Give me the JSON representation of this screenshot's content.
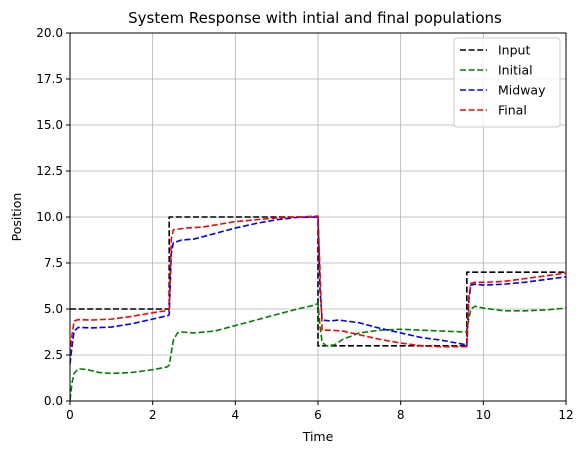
{
  "chart_data": {
    "type": "line",
    "title": "System Response with intial and final populations",
    "xlabel": "Time",
    "ylabel": "Position",
    "xlim": [
      0,
      12
    ],
    "ylim": [
      0,
      20
    ],
    "xticks": [
      0,
      2,
      4,
      6,
      8,
      10,
      12
    ],
    "xtick_labels": [
      "0",
      "2",
      "4",
      "6",
      "8",
      "10",
      "12"
    ],
    "yticks": [
      0,
      2.5,
      5,
      7.5,
      10,
      12.5,
      15,
      17.5,
      20
    ],
    "ytick_labels": [
      "0.0",
      "2.5",
      "5.0",
      "7.5",
      "10.0",
      "12.5",
      "15.0",
      "17.5",
      "20.0"
    ],
    "grid": true,
    "legend_position": "upper-right",
    "series": [
      {
        "name": "Input",
        "color": "#000000",
        "style": "dashed",
        "x": [
          0,
          2.4,
          2.4,
          6.0,
          6.0,
          9.6,
          9.6,
          12
        ],
        "y": [
          5,
          5,
          10,
          10,
          3,
          3,
          7,
          7
        ]
      },
      {
        "name": "Initial",
        "color": "#008000",
        "style": "dashed",
        "x": [
          0,
          0.05,
          0.1,
          0.2,
          0.4,
          0.7,
          1.0,
          1.5,
          2.0,
          2.35,
          2.4,
          2.5,
          2.6,
          2.7,
          3.0,
          3.5,
          4.0,
          4.5,
          5.0,
          5.5,
          5.9,
          6.0,
          6.05,
          6.1,
          6.2,
          6.4,
          6.6,
          7.0,
          7.5,
          8.0,
          8.5,
          9.0,
          9.59,
          9.6,
          9.7,
          9.8,
          10.0,
          10.5,
          11.0,
          11.5,
          12.0
        ],
        "y": [
          0.05,
          1.0,
          1.5,
          1.75,
          1.72,
          1.55,
          1.5,
          1.55,
          1.7,
          1.85,
          1.95,
          3.3,
          3.7,
          3.75,
          3.7,
          3.8,
          4.1,
          4.4,
          4.7,
          5.0,
          5.2,
          5.3,
          4.0,
          3.2,
          3.0,
          3.05,
          3.35,
          3.7,
          3.85,
          3.9,
          3.85,
          3.8,
          3.75,
          3.9,
          5.0,
          5.15,
          5.05,
          4.9,
          4.9,
          4.95,
          5.05
        ]
      },
      {
        "name": "Midway",
        "color": "#0000ff",
        "style": "dashed",
        "x": [
          0,
          0.05,
          0.1,
          0.2,
          0.5,
          1.0,
          1.5,
          2.0,
          2.38,
          2.4,
          2.45,
          2.5,
          2.7,
          3.0,
          3.5,
          4.0,
          4.5,
          5.0,
          5.5,
          6.0,
          6.05,
          6.1,
          6.3,
          6.5,
          7.0,
          7.5,
          8.0,
          8.5,
          9.0,
          9.59,
          9.6,
          9.65,
          9.7,
          9.8,
          10.0,
          10.5,
          11.0,
          11.5,
          12.0
        ],
        "y": [
          2.0,
          3.0,
          3.8,
          4.0,
          3.97,
          4.02,
          4.2,
          4.45,
          4.65,
          4.7,
          8.0,
          8.6,
          8.75,
          8.8,
          9.1,
          9.4,
          9.65,
          9.85,
          9.98,
          10.0,
          6.0,
          4.4,
          4.35,
          4.4,
          4.25,
          3.95,
          3.7,
          3.45,
          3.3,
          3.05,
          3.0,
          5.5,
          6.3,
          6.35,
          6.3,
          6.35,
          6.45,
          6.6,
          6.75
        ]
      },
      {
        "name": "Final",
        "color": "#ff0000",
        "style": "dashed",
        "x": [
          0,
          0.05,
          0.1,
          0.2,
          0.5,
          1.0,
          1.5,
          2.0,
          2.38,
          2.4,
          2.45,
          2.5,
          2.8,
          3.2,
          3.6,
          4.0,
          4.5,
          5.0,
          5.5,
          6.0,
          6.05,
          6.1,
          6.3,
          6.6,
          7.0,
          7.5,
          8.0,
          8.5,
          9.0,
          9.59,
          9.6,
          9.65,
          9.7,
          9.8,
          10.0,
          10.5,
          11.0,
          11.5,
          12.0
        ],
        "y": [
          2.5,
          3.6,
          4.35,
          4.42,
          4.4,
          4.45,
          4.6,
          4.8,
          4.92,
          4.95,
          8.8,
          9.3,
          9.4,
          9.45,
          9.6,
          9.75,
          9.85,
          9.95,
          10.0,
          10.05,
          7.0,
          3.85,
          3.85,
          3.8,
          3.6,
          3.35,
          3.15,
          3.0,
          2.95,
          2.95,
          2.95,
          5.7,
          6.4,
          6.45,
          6.45,
          6.5,
          6.65,
          6.8,
          6.95
        ]
      }
    ]
  }
}
